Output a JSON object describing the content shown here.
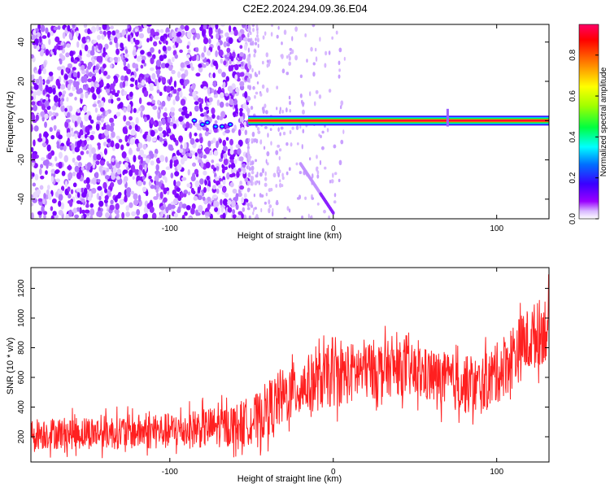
{
  "title": "C2E2.2024.294.09.36.E04",
  "chart_data": [
    {
      "type": "heatmap",
      "xlabel": "Height of straight line (km)",
      "ylabel": "Frequency (Hz)",
      "xlim": [
        -185,
        132
      ],
      "ylim": [
        -50,
        49
      ],
      "xticks": [
        -100,
        0,
        100
      ],
      "yticks": [
        -40,
        -20,
        0,
        20,
        40
      ],
      "colorbar": {
        "label": "Normalized spectral amplitude",
        "range": [
          0.0,
          0.95
        ],
        "ticks": [
          0.0,
          0.2,
          0.4,
          0.6,
          0.8
        ],
        "tick_labels": [
          "0.0",
          "0.2",
          "0.4",
          "0.6",
          "0.8"
        ],
        "colors": [
          "#ffffff",
          "#9a00ff",
          "#3a00ff",
          "#0080ff",
          "#00ffff",
          "#00ff40",
          "#a0ff00",
          "#ffff00",
          "#ff8000",
          "#ff0000",
          "#ff0066"
        ]
      },
      "features": [
        {
          "name": "carrier line",
          "x_range": [
            -52,
            132
          ],
          "frequency": 0,
          "amplitude": 0.95
        },
        {
          "name": "noise region",
          "x_range": [
            -185,
            -52
          ],
          "frequency_range": [
            -50,
            49
          ],
          "amplitude": 0.15
        },
        {
          "name": "weak drift",
          "x_range": [
            -20,
            0
          ],
          "frequency_range": [
            -47,
            -22
          ],
          "amplitude": 0.2
        },
        {
          "name": "spike",
          "x": 70,
          "frequency_range": [
            -3,
            6
          ],
          "amplitude": 0.5
        }
      ],
      "grid": false
    },
    {
      "type": "line",
      "xlabel": "Height of straight line (km)",
      "ylabel": "SNR (10 * v/v)",
      "xlim": [
        -185,
        132
      ],
      "ylim": [
        30,
        1340
      ],
      "xticks": [
        -100,
        0,
        100
      ],
      "yticks": [
        200,
        400,
        600,
        800,
        1000,
        1200
      ],
      "color": "#ff2020",
      "grid": false,
      "profile": {
        "x": [
          -185,
          -140,
          -100,
          -60,
          -45,
          -40,
          -20,
          0,
          10,
          20,
          40,
          60,
          80,
          90,
          100,
          110,
          120,
          132
        ],
        "lower": [
          80,
          80,
          75,
          85,
          100,
          140,
          280,
          330,
          350,
          380,
          420,
          360,
          290,
          280,
          350,
          450,
          560,
          640
        ],
        "upper": [
          360,
          380,
          400,
          470,
          560,
          650,
          800,
          880,
          900,
          930,
          900,
          850,
          810,
          800,
          900,
          1050,
          1150,
          1260
        ]
      }
    }
  ]
}
